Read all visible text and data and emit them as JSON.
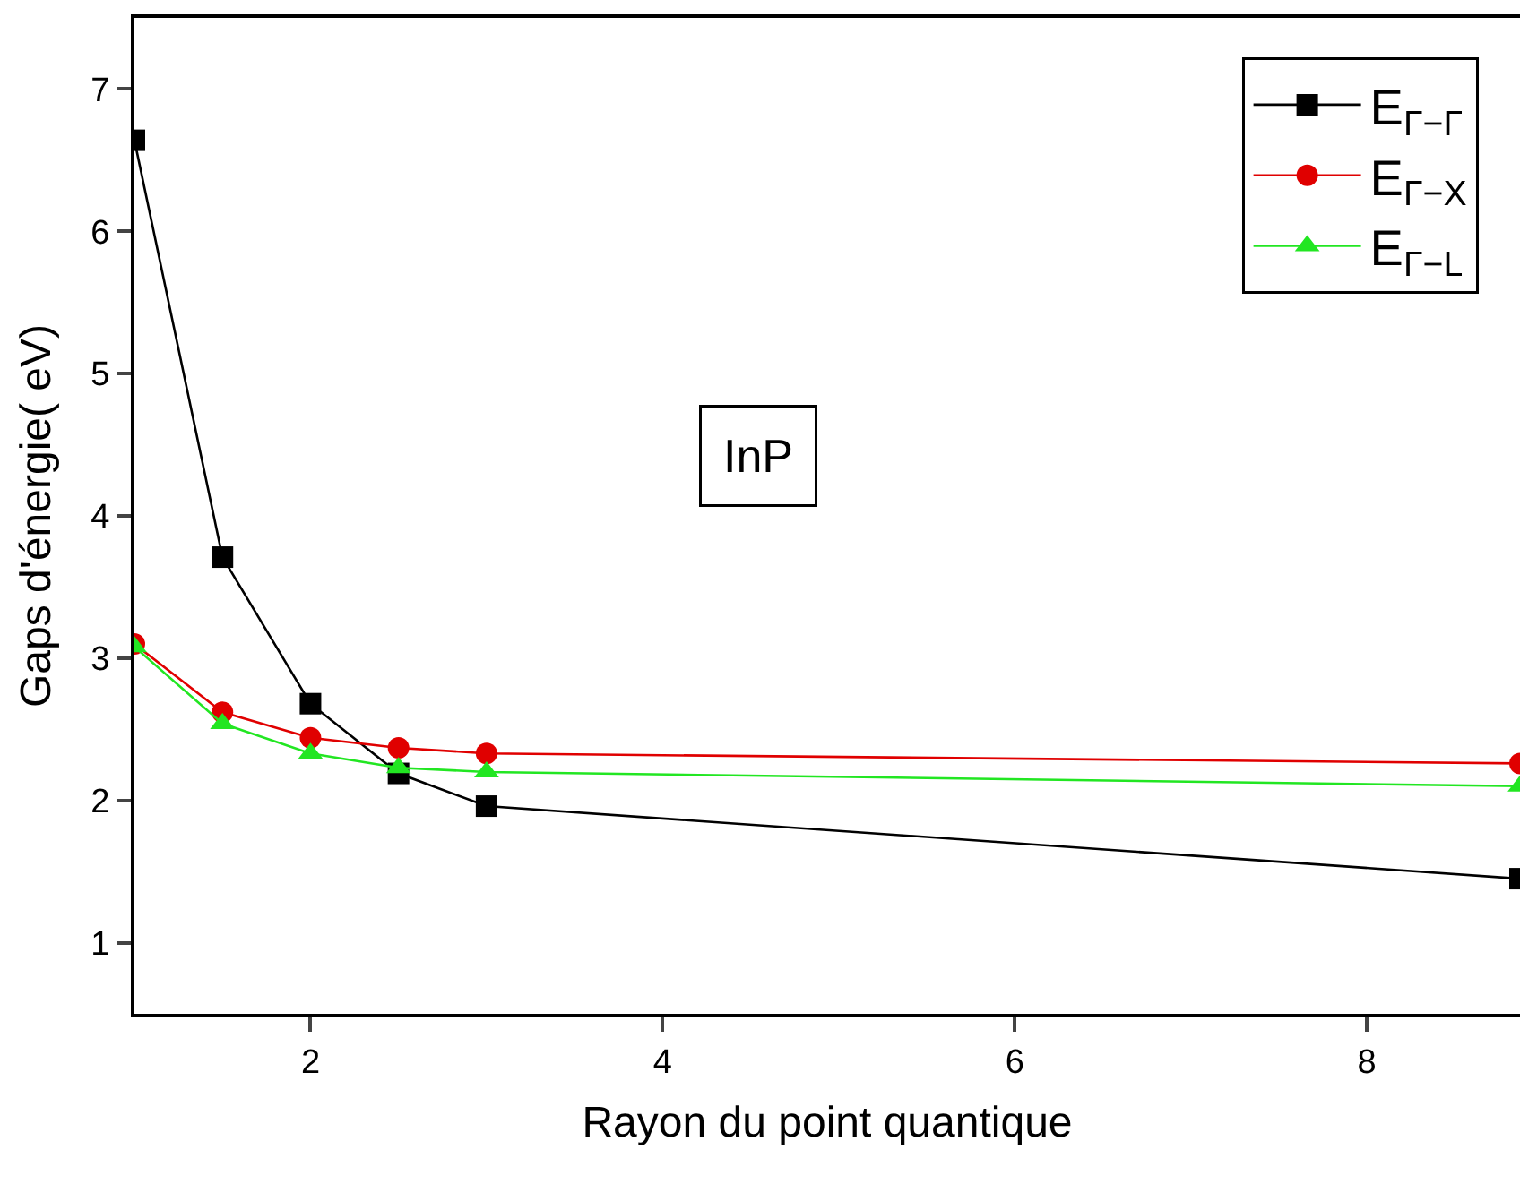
{
  "chart_data": {
    "type": "line",
    "xlabel": "Rayon du point quantique",
    "ylabel": "Gaps d'énergie( eV)",
    "annotations": [
      "InP"
    ],
    "xlim": [
      1,
      8.87
    ],
    "xticks": [
      2,
      4,
      6,
      8
    ],
    "ylim": [
      0.5,
      7.5
    ],
    "yticks": [
      1,
      2,
      3,
      4,
      5,
      6,
      7
    ],
    "legend": "top right",
    "line_style": "solid",
    "series": [
      {
        "name": "E$_{Γ−Γ}$",
        "color": "#000000",
        "marker": "square",
        "x": [
          1,
          1.5,
          2,
          2.5,
          3,
          8.87
        ],
        "values": [
          6.64,
          3.71,
          2.68,
          2.19,
          1.96,
          1.45
        ]
      },
      {
        "name": "E$_{Γ−X}$",
        "color": "#e00000",
        "marker": "circle",
        "x": [
          1,
          1.5,
          2,
          2.5,
          3,
          8.87
        ],
        "values": [
          3.1,
          2.62,
          2.44,
          2.37,
          2.33,
          2.26
        ]
      },
      {
        "name": "E$_{Γ−L}$",
        "color": "#22e622",
        "marker": "triangle",
        "x": [
          1,
          1.5,
          2,
          2.5,
          3,
          8.87
        ],
        "values": [
          3.08,
          2.54,
          2.33,
          2.23,
          2.2,
          2.1
        ]
      }
    ]
  }
}
